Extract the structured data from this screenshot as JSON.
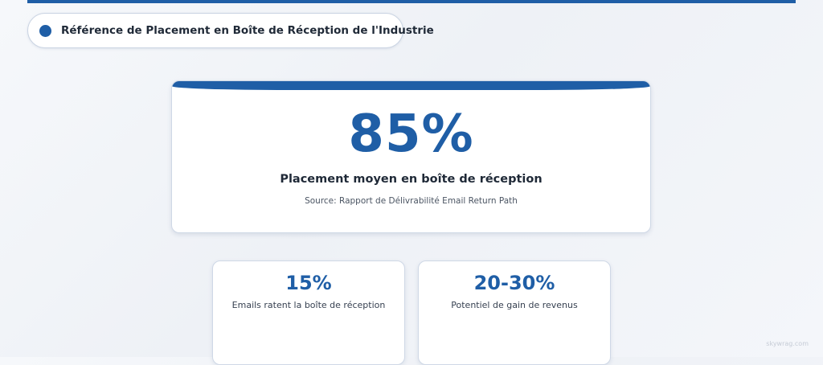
{
  "header": {
    "label": "Référence de Placement en Boîte de Réception de l'Industrie"
  },
  "main_stat": {
    "value": "85%",
    "caption": "Placement moyen en boîte de réception",
    "source": "Source: Rapport de Délivrabilité Email Return Path"
  },
  "stats": [
    {
      "value": "15%",
      "label": "Emails ratent la boîte de réception"
    },
    {
      "value": "20-30%",
      "label": "Potentiel de gain de revenus"
    }
  ],
  "watermark": "skywrag.com",
  "colors": {
    "accent": "#1f5ea6",
    "text": "#1f2937",
    "card_border": "#cfd8e6"
  }
}
